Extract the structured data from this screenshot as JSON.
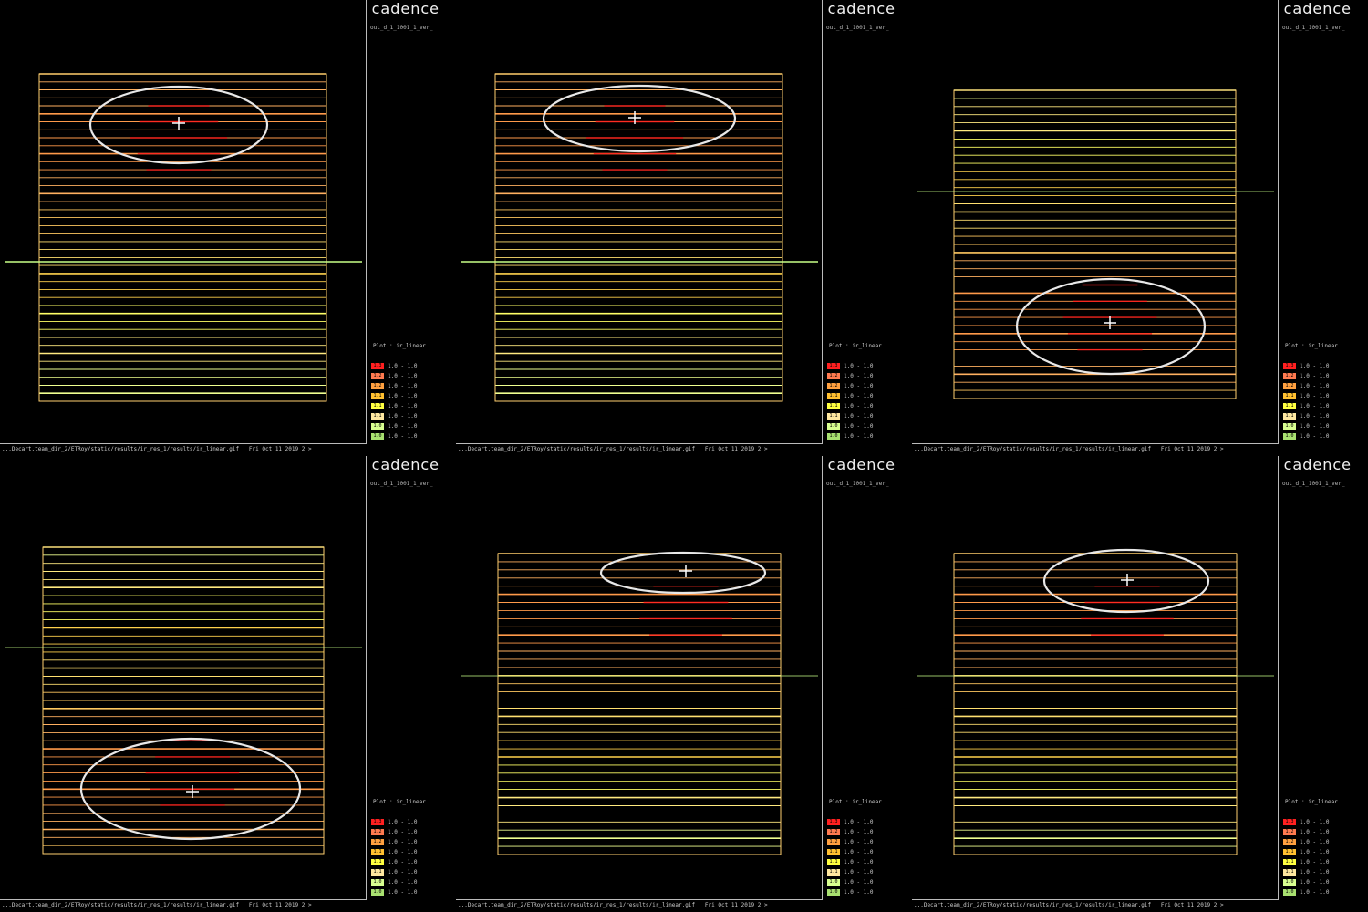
{
  "logo": {
    "text": "cadence"
  },
  "colors": {
    "background": "#000000",
    "high": "#ff1a1a",
    "mid_high": "#ff9933",
    "mid": "#ffd24d",
    "low": "#ffff66",
    "lowest": "#ccff88",
    "marker": "#eeeeee"
  },
  "legend": [
    {
      "swatch": "#ff2020",
      "code": "1.3"
    },
    {
      "swatch": "#ff7a50",
      "code": "1.2"
    },
    {
      "swatch": "#ffa040",
      "code": "1.2"
    },
    {
      "swatch": "#ffc030",
      "code": "1.1"
    },
    {
      "swatch": "#ffff40",
      "code": "1.1"
    },
    {
      "swatch": "#ffe8a0",
      "code": "1.1"
    },
    {
      "swatch": "#d8ff90",
      "code": "1.0"
    },
    {
      "swatch": "#a8e070",
      "code": "1.0"
    }
  ],
  "panels": [
    {
      "design_name": "out_d_1_1001_1_ver_",
      "plot_label": "Plot : ir_linear",
      "legend_text": [
        "1.0 - 1.0",
        "1.0 - 1.0",
        "1.0 - 1.0",
        "1.0 - 1.0",
        "1.0 - 1.0",
        "1.0 - 1.0",
        "1.0 - 1.0",
        "1.0 - 1.0"
      ],
      "status": "...Decart.team_dir_2/ETRoy/static/results/ir_res_1/results/ir_linear.gif | Fri Oct 11 2019 2 >",
      "hotspot": "top",
      "rows": 41
    },
    {
      "design_name": "out_d_1_1001_1_ver_",
      "plot_label": "Plot : ir_linear",
      "legend_text": [
        "1.0 - 1.0",
        "1.0 - 1.0",
        "1.0 - 1.0",
        "1.0 - 1.0",
        "1.0 - 1.0",
        "1.0 - 1.0",
        "1.0 - 1.0",
        "1.0 - 1.0"
      ],
      "status": "...Decart.team_dir_2/ETRoy/static/results/ir_res_1/results/ir_linear.gif | Fri Oct 11 2019 2 >",
      "hotspot": "top",
      "rows": 41
    },
    {
      "design_name": "out_d_1_1001_1_ver_",
      "plot_label": "Plot : ir_linear",
      "legend_text": [
        "1.0 - 1.0",
        "1.0 - 1.0",
        "1.0 - 1.0",
        "1.0 - 1.0",
        "1.0 - 1.0",
        "1.0 - 1.0",
        "1.0 - 1.0",
        "1.0 - 1.0"
      ],
      "status": "...Decart.team_dir_2/ETRoy/static/results/ir_res_1/results/ir_linear.gif | Fri Oct 11 2019 2 >",
      "hotspot": "bottom",
      "rows": 38
    },
    {
      "design_name": "out_d_1_1001_1_ver_",
      "plot_label": "Plot : ir_linear",
      "legend_text": [
        "1.0 - 1.0",
        "1.0 - 1.0",
        "1.0 - 1.0",
        "1.0 - 1.0",
        "1.0 - 1.0",
        "1.0 - 1.0",
        "1.0 - 1.0",
        "1.0 - 1.0"
      ],
      "status": "...Decart.team_dir_2/ETRoy/static/results/ir_res_1/results/ir_linear.gif | Fri Oct 11 2019 2 >",
      "hotspot": "bottom",
      "rows": 38
    },
    {
      "design_name": "out_d_1_1001_1_ver_",
      "plot_label": "Plot : ir_linear",
      "legend_text": [
        "1.0 - 1.0",
        "1.0 - 1.0",
        "1.0 - 1.0",
        "1.0 - 1.0",
        "1.0 - 1.0",
        "1.0 - 1.0",
        "1.0 - 1.0",
        "1.0 - 1.0"
      ],
      "status": "...Decart.team_dir_2/ETRoy/static/results/ir_res_1/results/ir_linear.gif | Fri Oct 11 2019 2 >",
      "hotspot": "top",
      "rows": 37
    },
    {
      "design_name": "out_d_1_1001_1_ver_",
      "plot_label": "Plot : ir_linear",
      "legend_text": [
        "1.0 - 1.0",
        "1.0 - 1.0",
        "1.0 - 1.0",
        "1.0 - 1.0",
        "1.0 - 1.0",
        "1.0 - 1.0",
        "1.0 - 1.0",
        "1.0 - 1.0"
      ],
      "status": "...Decart.team_dir_2/ETRoy/static/results/ir_res_1/results/ir_linear.gif | Fri Oct 11 2019 2 >",
      "hotspot": "top",
      "rows": 37
    }
  ]
}
